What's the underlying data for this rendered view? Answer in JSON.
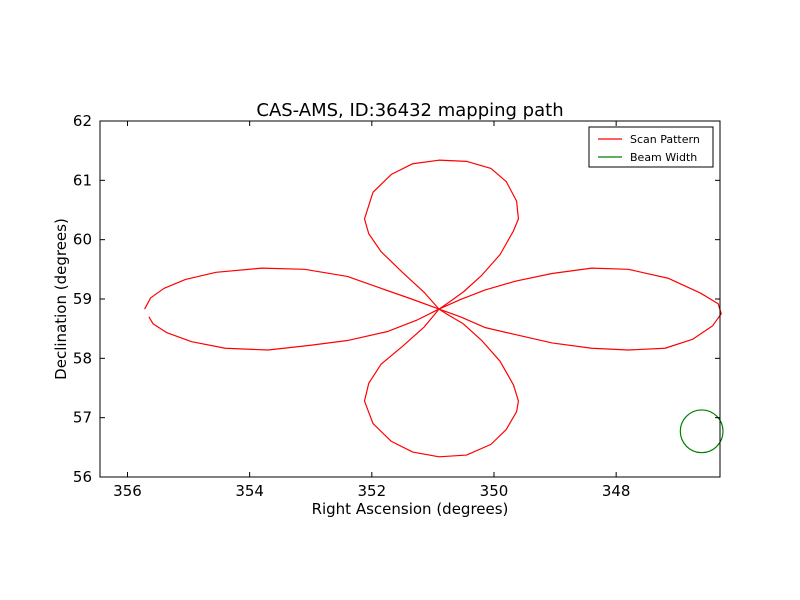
{
  "chart_data": {
    "type": "line",
    "title": "CAS-AMS, ID:36432 mapping path",
    "xlabel": "Right Ascension (degrees)",
    "ylabel": "Declination (degrees)",
    "xlim": [
      356.45,
      346.3
    ],
    "ylim": [
      56,
      62
    ],
    "x_inverted": true,
    "grid": false,
    "legend_position": "upper right",
    "xticks": [
      {
        "value": 356,
        "label": "356"
      },
      {
        "value": 354,
        "label": "354"
      },
      {
        "value": 352,
        "label": "352"
      },
      {
        "value": 350,
        "label": "350"
      },
      {
        "value": 348,
        "label": "348"
      }
    ],
    "yticks": [
      {
        "value": 56,
        "label": "56"
      },
      {
        "value": 57,
        "label": "57"
      },
      {
        "value": 58,
        "label": "58"
      },
      {
        "value": 59,
        "label": "59"
      },
      {
        "value": 60,
        "label": "60"
      },
      {
        "value": 61,
        "label": "61"
      },
      {
        "value": 62,
        "label": "62"
      }
    ],
    "series": [
      {
        "name": "Scan Pattern",
        "color": "#ff0000",
        "points": [
          [
            350.9,
            58.83
          ],
          [
            350.73,
            58.95
          ],
          [
            350.5,
            59.12
          ],
          [
            350.2,
            59.4
          ],
          [
            349.9,
            59.75
          ],
          [
            349.68,
            60.15
          ],
          [
            349.6,
            60.35
          ],
          [
            349.63,
            60.65
          ],
          [
            349.8,
            60.98
          ],
          [
            350.05,
            61.2
          ],
          [
            350.45,
            61.32
          ],
          [
            350.9,
            61.34
          ],
          [
            351.33,
            61.28
          ],
          [
            351.68,
            61.1
          ],
          [
            351.98,
            60.8
          ],
          [
            352.12,
            60.35
          ],
          [
            352.05,
            60.1
          ],
          [
            351.85,
            59.8
          ],
          [
            351.5,
            59.45
          ],
          [
            351.15,
            59.12
          ],
          [
            350.9,
            58.83
          ],
          [
            350.55,
            58.7
          ],
          [
            350.15,
            58.52
          ],
          [
            349.65,
            58.4
          ],
          [
            349.05,
            58.26
          ],
          [
            348.4,
            58.17
          ],
          [
            347.8,
            58.14
          ],
          [
            347.2,
            58.17
          ],
          [
            346.75,
            58.32
          ],
          [
            346.42,
            58.55
          ],
          [
            346.28,
            58.75
          ],
          [
            346.33,
            58.92
          ],
          [
            346.62,
            59.1
          ],
          [
            347.15,
            59.35
          ],
          [
            347.8,
            59.5
          ],
          [
            348.4,
            59.52
          ],
          [
            349.05,
            59.43
          ],
          [
            349.65,
            59.3
          ],
          [
            350.15,
            59.15
          ],
          [
            350.55,
            58.99
          ],
          [
            350.9,
            58.83
          ],
          [
            351.15,
            58.52
          ],
          [
            351.5,
            58.2
          ],
          [
            351.85,
            57.9
          ],
          [
            352.05,
            57.58
          ],
          [
            352.12,
            57.28
          ],
          [
            351.98,
            56.9
          ],
          [
            351.68,
            56.6
          ],
          [
            351.33,
            56.42
          ],
          [
            350.9,
            56.34
          ],
          [
            350.45,
            56.37
          ],
          [
            350.05,
            56.55
          ],
          [
            349.8,
            56.8
          ],
          [
            349.63,
            57.1
          ],
          [
            349.6,
            57.28
          ],
          [
            349.68,
            57.55
          ],
          [
            349.9,
            57.95
          ],
          [
            350.2,
            58.3
          ],
          [
            350.5,
            58.58
          ],
          [
            350.73,
            58.72
          ],
          [
            350.9,
            58.83
          ],
          [
            351.25,
            58.65
          ],
          [
            351.75,
            58.45
          ],
          [
            352.4,
            58.3
          ],
          [
            353.0,
            58.22
          ],
          [
            353.7,
            58.14
          ],
          [
            354.4,
            58.17
          ],
          [
            354.95,
            58.28
          ],
          [
            355.35,
            58.43
          ],
          [
            355.58,
            58.58
          ],
          [
            355.65,
            58.7
          ]
        ]
      },
      {
        "name": "Scan Pattern",
        "color": "#ff0000",
        "points": [
          [
            355.72,
            58.83
          ],
          [
            355.62,
            59.02
          ],
          [
            355.4,
            59.18
          ],
          [
            355.05,
            59.33
          ],
          [
            354.55,
            59.45
          ],
          [
            353.8,
            59.52
          ],
          [
            353.1,
            59.5
          ],
          [
            352.4,
            59.38
          ],
          [
            351.85,
            59.18
          ],
          [
            351.35,
            59.0
          ],
          [
            350.9,
            58.83
          ]
        ]
      },
      {
        "name": "Beam Width",
        "color": "#008000",
        "shape": "circle",
        "center": [
          346.6,
          56.77
        ],
        "radius_y": 0.36
      }
    ],
    "legend": [
      {
        "label": "Scan Pattern",
        "color": "#ff0000"
      },
      {
        "label": "Beam Width",
        "color": "#008000"
      }
    ]
  }
}
